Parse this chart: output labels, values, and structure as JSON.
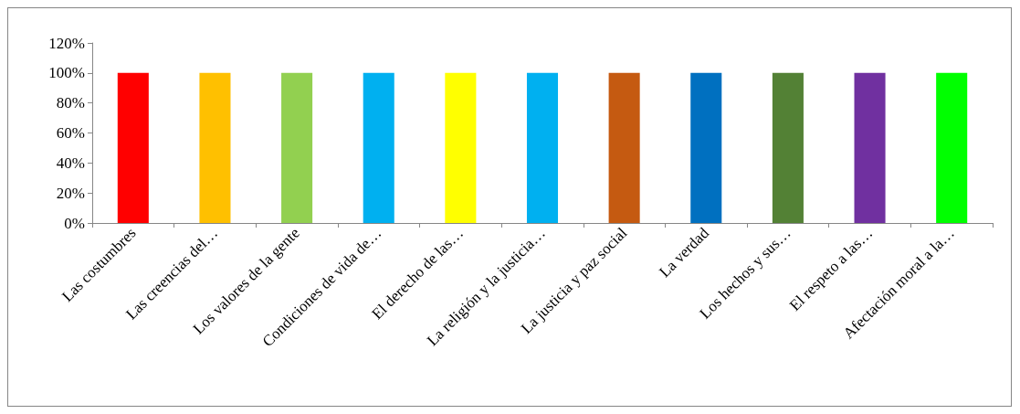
{
  "chart_data": {
    "type": "bar",
    "categories": [
      "Las costumbres",
      "Las creencias del…",
      "Los valores de la gente",
      "Condiciones de vida de…",
      "El derecho de las…",
      "La religión y la justicia…",
      "La justicia y paz social",
      "La verdad",
      "Los hechos y sus…",
      "El respeto a las…",
      "Afectación moral a la…"
    ],
    "values": [
      100,
      100,
      100,
      100,
      100,
      100,
      100,
      100,
      100,
      100,
      100
    ],
    "colors": [
      "#ff0000",
      "#ffc000",
      "#92d050",
      "#00b0f0",
      "#ffff00",
      "#00b0f0",
      "#c55a11",
      "#0070c0",
      "#538135",
      "#7030a0",
      "#00ff00"
    ],
    "ylim": [
      0,
      120
    ],
    "yticks": [
      {
        "value": 0,
        "label": "0%"
      },
      {
        "value": 20,
        "label": "20%"
      },
      {
        "value": 40,
        "label": "40%"
      },
      {
        "value": 60,
        "label": "60%"
      },
      {
        "value": 80,
        "label": "80%"
      },
      {
        "value": 100,
        "label": "100%"
      },
      {
        "value": 120,
        "label": "120%"
      }
    ],
    "grid": false
  }
}
